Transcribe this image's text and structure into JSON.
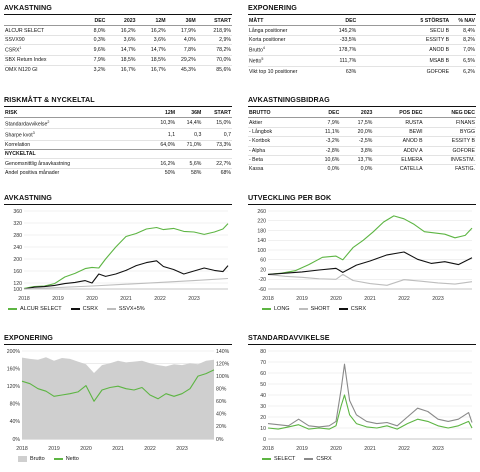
{
  "colors": {
    "green": "#5db543",
    "black": "#111111",
    "grey": "#bdbdbd",
    "grey_dark": "#8a8a8a"
  },
  "avkastning_table": {
    "title": "AVKASTNING",
    "headers": [
      "",
      "DEC",
      "2023",
      "12M",
      "36M",
      "START"
    ],
    "rows": [
      [
        "ALCUR SELECT",
        "8,0%",
        "16,2%",
        "16,2%",
        "17,9%",
        "218,9%"
      ],
      [
        "SSVX90",
        "0,3%",
        "3,6%",
        "3,6%",
        "4,0%",
        "2,9%"
      ],
      [
        "CSRX",
        "9,6%",
        "14,7%",
        "14,7%",
        "7,8%",
        "78,2%"
      ],
      [
        "SBX Return Index",
        "7,9%",
        "18,5%",
        "18,5%",
        "29,2%",
        "70,0%"
      ],
      [
        "OMX N120 GI",
        "3,2%",
        "16,7%",
        "16,7%",
        "45,3%",
        "85,6%"
      ]
    ],
    "sup": {
      "2": "1"
    }
  },
  "exponering_table": {
    "title": "EXPONERING",
    "headers": [
      "MÅTT",
      "DEC",
      "",
      "5 STÖRSTA",
      "% NAV"
    ],
    "rows": [
      [
        "Långa positioner",
        "145,2%",
        "",
        "SECU B",
        "8,4%"
      ],
      [
        "Korta positioner",
        "-33,5%",
        "",
        "ESSITY B",
        "8,2%"
      ],
      [
        "Brutto",
        "178,7%",
        "",
        "ANOD B",
        "7,0%"
      ],
      [
        "Netto",
        "111,7%",
        "",
        "MSAB B",
        "6,5%"
      ],
      [
        "Vikt top 10 positioner",
        "63%",
        "",
        "GOFORE",
        "6,2%"
      ]
    ],
    "sup": {
      "2": "4",
      "3": "5"
    }
  },
  "risk_table": {
    "title": "RISKMÅTT & NYCKELTAL",
    "headers": [
      "RISK",
      "",
      "12M",
      "36M",
      "START"
    ],
    "rows": [
      [
        "Standardavvikelse",
        "",
        "10,3%",
        "14,4%",
        "15,0%"
      ],
      [
        "Sharpe kvot",
        "",
        "1,1",
        "0,3",
        "0,7"
      ],
      [
        "Korrelation",
        "",
        "64,0%",
        "71,0%",
        "73,3%"
      ]
    ],
    "sup": {
      "0": "2",
      "1": "3"
    },
    "sub_header": "NYCKELTAL",
    "rows2": [
      [
        "Genomsnittlig årsavkastning",
        "",
        "16,2%",
        "5,6%",
        "22,7%"
      ],
      [
        "Andel positiva månader",
        "",
        "50%",
        "58%",
        "68%"
      ]
    ]
  },
  "bidrag_table": {
    "title": "AVKASTNINGSBIDRAG",
    "headers": [
      "BRUTTO",
      "DEC",
      "2023",
      "POS DEC",
      "NEG DEC"
    ],
    "rows": [
      [
        "Aktier",
        "7,9%",
        "17,5%",
        "RUSTA",
        "FINANS"
      ],
      [
        "- Långbok",
        "11,1%",
        "20,0%",
        "BEWI",
        "BYGG"
      ],
      [
        "- Kortbok",
        "-3,2%",
        "-2,5%",
        "ANOD B",
        "ESSITY B"
      ],
      [
        "- Alpha",
        "-2,8%",
        "3,8%",
        "ADDV A",
        "GOFORE"
      ],
      [
        "- Beta",
        "10,6%",
        "13,7%",
        "ELMERA",
        "INVESTM."
      ],
      [
        "Kassa",
        "0,0%",
        "0,0%",
        "CATELLA",
        "FASTIG."
      ]
    ]
  },
  "chart_titles": {
    "avk": "AVKASTNING",
    "utv": "UTVECKLING PER BOK",
    "exp": "EXPONERING",
    "std": "STANDARDAVVIKELSE"
  },
  "chart_data": [
    {
      "type": "line",
      "id": "avk",
      "xlim": [
        2018,
        2024
      ],
      "ylim": [
        100,
        360
      ],
      "yticks": [
        100,
        120,
        160,
        200,
        240,
        280,
        320,
        360
      ],
      "xticks": [
        2018,
        2019,
        2020,
        2021,
        2022,
        2023
      ],
      "xticklabels": [
        "2018",
        "2019",
        "2020",
        "2021",
        "2022",
        "2023"
      ],
      "series": [
        {
          "name": "ALCUR SELECT",
          "color": "#5db543",
          "x": [
            2018.0,
            2018.3,
            2018.6,
            2018.9,
            2019.2,
            2019.5,
            2019.8,
            2020.0,
            2020.2,
            2020.4,
            2020.7,
            2021.0,
            2021.3,
            2021.6,
            2021.9,
            2022.1,
            2022.4,
            2022.7,
            2023.0,
            2023.3,
            2023.6,
            2023.85,
            2024.0
          ],
          "y": [
            102,
            108,
            110,
            118,
            140,
            152,
            168,
            172,
            170,
            200,
            240,
            275,
            285,
            300,
            305,
            298,
            302,
            292,
            290,
            282,
            290,
            300,
            318
          ]
        },
        {
          "name": "CSRX",
          "color": "#111111",
          "x": [
            2018.0,
            2018.3,
            2018.6,
            2018.9,
            2019.2,
            2019.5,
            2019.8,
            2020.0,
            2020.2,
            2020.4,
            2020.7,
            2021.0,
            2021.3,
            2021.6,
            2021.9,
            2022.1,
            2022.4,
            2022.7,
            2023.0,
            2023.3,
            2023.6,
            2023.85,
            2024.0
          ],
          "y": [
            100,
            106,
            108,
            112,
            118,
            122,
            128,
            120,
            150,
            142,
            150,
            162,
            178,
            188,
            194,
            175,
            165,
            150,
            160,
            170,
            162,
            158,
            178
          ]
        },
        {
          "name": "SSVX+5%",
          "color": "#bdbdbd",
          "x": [
            2018,
            2019,
            2020,
            2021,
            2022,
            2023,
            2024
          ],
          "y": [
            100,
            105,
            110,
            116,
            122,
            128,
            135
          ]
        }
      ]
    },
    {
      "type": "line",
      "id": "utv",
      "xlim": [
        2018,
        2024
      ],
      "ylim": [
        -60,
        260
      ],
      "yticks": [
        -60,
        -20,
        20,
        60,
        100,
        140,
        180,
        220,
        260
      ],
      "xticks": [
        2018,
        2019,
        2020,
        2021,
        2022,
        2023
      ],
      "xticklabels": [
        "2018",
        "2019",
        "2020",
        "2021",
        "2022",
        "2023"
      ],
      "series": [
        {
          "name": "LONG",
          "color": "#5db543",
          "x": [
            2018.0,
            2018.4,
            2018.8,
            2019.2,
            2019.6,
            2020.0,
            2020.2,
            2020.5,
            2020.8,
            2021.1,
            2021.4,
            2021.7,
            2022.0,
            2022.3,
            2022.6,
            2022.9,
            2023.2,
            2023.5,
            2023.8,
            2024.0
          ],
          "y": [
            0,
            5,
            15,
            40,
            70,
            75,
            60,
            110,
            140,
            175,
            215,
            240,
            228,
            205,
            175,
            170,
            165,
            150,
            160,
            190
          ]
        },
        {
          "name": "SHORT",
          "color": "#bdbdbd",
          "x": [
            2018.0,
            2018.5,
            2019.0,
            2019.5,
            2020.0,
            2020.2,
            2020.5,
            2021.0,
            2021.5,
            2022.0,
            2022.5,
            2023.0,
            2023.5,
            2024.0
          ],
          "y": [
            0,
            -8,
            -12,
            -18,
            -20,
            0,
            -25,
            -38,
            -45,
            -22,
            -28,
            -35,
            -40,
            -30
          ]
        },
        {
          "name": "CSRX",
          "color": "#111111",
          "x": [
            2018.0,
            2018.5,
            2019.0,
            2019.5,
            2020.0,
            2020.2,
            2020.6,
            2021.0,
            2021.5,
            2022.0,
            2022.4,
            2022.8,
            2023.2,
            2023.6,
            2024.0
          ],
          "y": [
            0,
            5,
            10,
            18,
            25,
            8,
            38,
            55,
            80,
            92,
            62,
            45,
            52,
            40,
            68
          ]
        }
      ]
    },
    {
      "type": "area",
      "id": "exp",
      "xlim": [
        2018,
        2024
      ],
      "ylim": [
        0,
        140
      ],
      "yticks": [
        0,
        20,
        40,
        60,
        80,
        100,
        120,
        140
      ],
      "ylim_left": [
        0,
        200
      ],
      "yticks_left": [
        0,
        40,
        80,
        120,
        160,
        200
      ],
      "xticks": [
        2018,
        2019,
        2020,
        2021,
        2022,
        2023
      ],
      "xticklabels": [
        "2018",
        "2019",
        "2020",
        "2021",
        "2022",
        "2023"
      ],
      "series": [
        {
          "name": "Brutto",
          "color": "#cfcfcf",
          "axis": "left",
          "x": [
            2018.0,
            2018.25,
            2018.5,
            2018.75,
            2019.0,
            2019.25,
            2019.5,
            2019.75,
            2020.0,
            2020.25,
            2020.5,
            2020.75,
            2021.0,
            2021.25,
            2021.5,
            2021.75,
            2022.0,
            2022.25,
            2022.5,
            2022.75,
            2023.0,
            2023.25,
            2023.5,
            2023.75,
            2024.0
          ],
          "y": [
            185,
            182,
            180,
            186,
            178,
            184,
            182,
            176,
            170,
            150,
            168,
            172,
            178,
            174,
            176,
            178,
            172,
            168,
            165,
            170,
            168,
            172,
            170,
            178,
            180
          ]
        },
        {
          "name": "Netto",
          "color": "#5db543",
          "axis": "right",
          "x": [
            2018.0,
            2018.25,
            2018.5,
            2018.75,
            2019.0,
            2019.25,
            2019.5,
            2019.75,
            2020.0,
            2020.25,
            2020.5,
            2020.75,
            2021.0,
            2021.25,
            2021.5,
            2021.75,
            2022.0,
            2022.25,
            2022.5,
            2022.75,
            2023.0,
            2023.25,
            2023.5,
            2023.75,
            2024.0
          ],
          "y": [
            92,
            88,
            80,
            76,
            68,
            70,
            72,
            75,
            85,
            60,
            78,
            82,
            84,
            80,
            78,
            82,
            70,
            64,
            72,
            68,
            72,
            80,
            100,
            104,
            110
          ]
        }
      ],
      "legend_names": [
        "Brutto",
        "Netto"
      ]
    },
    {
      "type": "line",
      "id": "std",
      "xlim": [
        2018,
        2024
      ],
      "ylim": [
        0,
        80
      ],
      "yticks": [
        0,
        10,
        20,
        30,
        40,
        50,
        60,
        70,
        80
      ],
      "xticks": [
        2018,
        2019,
        2020,
        2021,
        2022,
        2023
      ],
      "xticklabels": [
        "2018",
        "2019",
        "2020",
        "2021",
        "2022",
        "2023"
      ],
      "series": [
        {
          "name": "CSRX",
          "color": "#8a8a8a",
          "x": [
            2018.0,
            2018.3,
            2018.6,
            2018.9,
            2019.2,
            2019.5,
            2019.8,
            2020.0,
            2020.15,
            2020.25,
            2020.4,
            2020.6,
            2020.9,
            2021.2,
            2021.5,
            2021.8,
            2022.1,
            2022.4,
            2022.7,
            2023.0,
            2023.3,
            2023.6,
            2023.9,
            2024.0
          ],
          "y": [
            14,
            13,
            12,
            18,
            12,
            11,
            12,
            16,
            45,
            68,
            35,
            22,
            16,
            14,
            15,
            12,
            20,
            28,
            25,
            18,
            16,
            18,
            24,
            15
          ]
        },
        {
          "name": "SELECT",
          "color": "#5db543",
          "x": [
            2018.0,
            2018.3,
            2018.6,
            2018.9,
            2019.2,
            2019.5,
            2019.8,
            2020.0,
            2020.15,
            2020.25,
            2020.4,
            2020.6,
            2020.9,
            2021.2,
            2021.5,
            2021.8,
            2022.1,
            2022.4,
            2022.7,
            2023.0,
            2023.3,
            2023.6,
            2023.9,
            2024.0
          ],
          "y": [
            10,
            9,
            11,
            13,
            9,
            10,
            9,
            12,
            30,
            40,
            22,
            14,
            11,
            10,
            12,
            9,
            14,
            18,
            16,
            12,
            10,
            12,
            16,
            10
          ]
        }
      ],
      "legend_names": [
        "SELECT",
        "CSRX"
      ]
    }
  ]
}
